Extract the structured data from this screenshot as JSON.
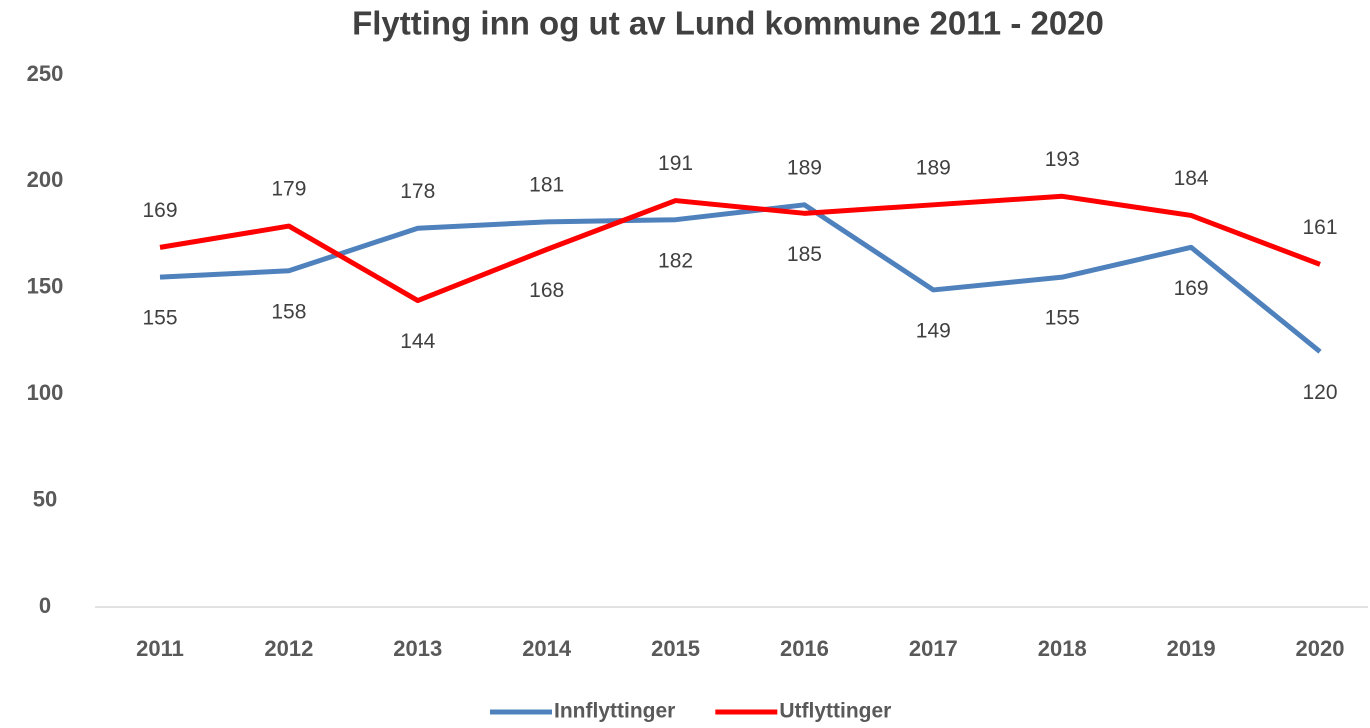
{
  "chart_data": {
    "type": "line",
    "title": "Flytting inn og ut av Lund kommune 2011 - 2020",
    "categories": [
      "2011",
      "2012",
      "2013",
      "2014",
      "2015",
      "2016",
      "2017",
      "2018",
      "2019",
      "2020"
    ],
    "series": [
      {
        "name": "Innflyttinger",
        "color": "#4f81bd",
        "values": [
          155,
          158,
          178,
          181,
          182,
          189,
          149,
          155,
          169,
          120
        ]
      },
      {
        "name": "Utflyttinger",
        "color": "#ff0000",
        "values": [
          169,
          179,
          144,
          168,
          191,
          185,
          189,
          193,
          184,
          161
        ]
      }
    ],
    "ylim": [
      0,
      250
    ],
    "yticks": [
      0,
      50,
      100,
      150,
      200,
      250
    ],
    "grid": false,
    "legend": "bottom"
  }
}
